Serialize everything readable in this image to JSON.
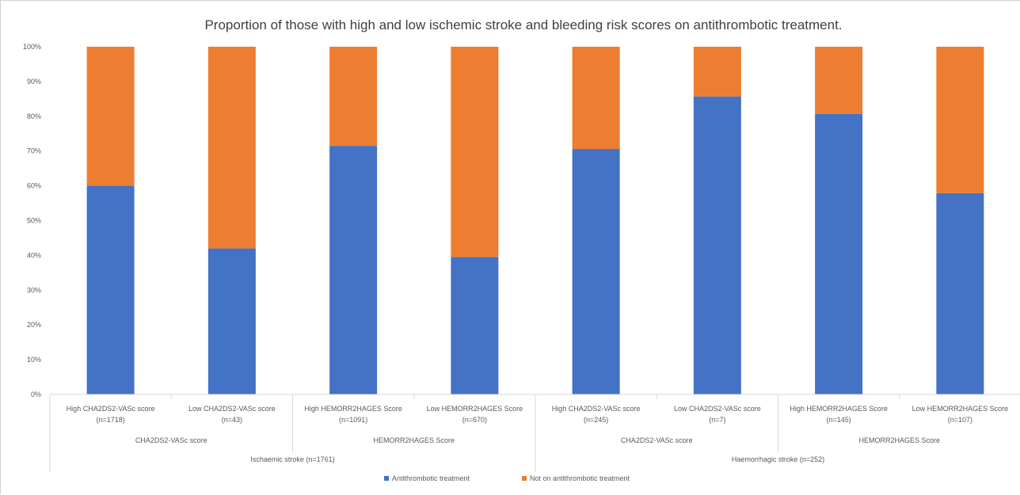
{
  "chart_data": {
    "type": "bar",
    "stacked": true,
    "title": "Proportion of those with high and low ischemic stroke and bleeding risk scores on antithrombotic treatment.",
    "xlabel": "",
    "ylabel": "",
    "ylim": [
      0,
      100
    ],
    "y_ticks": [
      "0%",
      "10%",
      "20%",
      "30%",
      "40%",
      "50%",
      "60%",
      "70%",
      "80%",
      "90%",
      "100%"
    ],
    "grid": false,
    "legend_position": "bottom",
    "categories": [
      [
        "High CHA2DS2-VASc score",
        "(n=1718)"
      ],
      [
        "Low CHA2DS2-VASc score",
        "(n=43)"
      ],
      [
        "High HEMORR2HAGES Score",
        "(n=1091)"
      ],
      [
        "Low HEMORR2HAGES Score",
        "(n=670)"
      ],
      [
        "High CHA2DS2-VASc score",
        "(n=245)"
      ],
      [
        "Low CHA2DS2-VASc score",
        "(n=7)"
      ],
      [
        "High HEMORR2HAGES Score",
        "(n=145)"
      ],
      [
        "Low HEMORR2HAGES Score",
        "(n=107)"
      ]
    ],
    "groups_level1": [
      {
        "label": "CHA2DS2-VASc score",
        "span": [
          0,
          1
        ]
      },
      {
        "label": "HEMORR2HAGES Score",
        "span": [
          2,
          3
        ]
      },
      {
        "label": "CHA2DS2-VASc score",
        "span": [
          4,
          5
        ]
      },
      {
        "label": "HEMORR2HAGES Score",
        "span": [
          6,
          7
        ]
      }
    ],
    "groups_level2": [
      {
        "label": "Ischaemic stroke (n=1761)",
        "span": [
          0,
          3
        ]
      },
      {
        "label": "Haemorrhagic stroke (n=252)",
        "span": [
          4,
          7
        ]
      }
    ],
    "series": [
      {
        "name": "Antithrombotic treatment",
        "color": "#4472C4",
        "values": [
          60,
          42,
          71.5,
          39.5,
          70.6,
          85.7,
          80.7,
          57.9
        ]
      },
      {
        "name": "Not on antithrombotic treatment",
        "color": "#ED7D31",
        "values": [
          40,
          58,
          28.5,
          60.5,
          29.4,
          14.3,
          19.3,
          42.1
        ]
      }
    ]
  }
}
